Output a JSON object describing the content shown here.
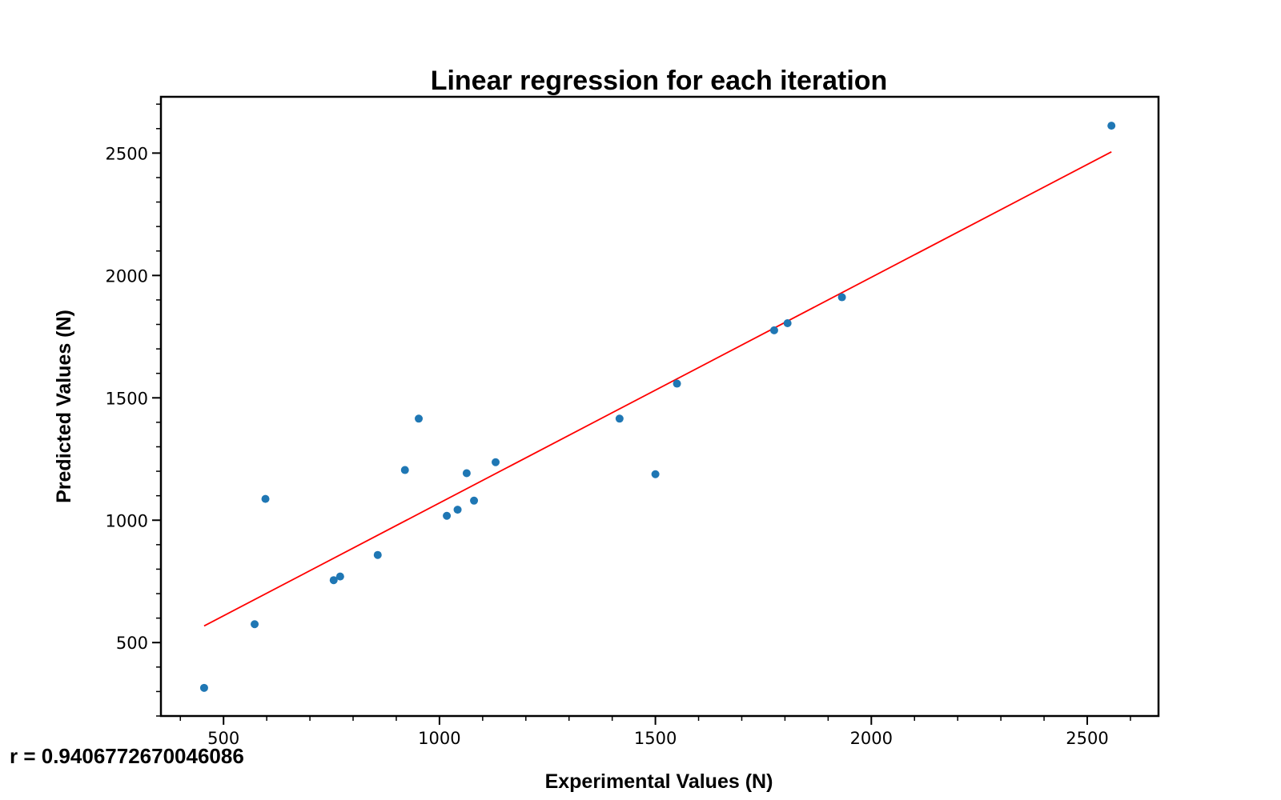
{
  "chart_data": {
    "type": "scatter",
    "title": "Linear regression for each iteration",
    "xlabel": "Experimental Values (N)",
    "ylabel": "Predicted Values (N)",
    "xlim": [
      355,
      2665
    ],
    "ylim": [
      200,
      2730
    ],
    "x_ticks": [
      500,
      1000,
      1500,
      2000,
      2500
    ],
    "y_ticks": [
      500,
      1000,
      1500,
      2000,
      2500
    ],
    "x_minor_step": 100,
    "y_minor_step": 100,
    "grid": false,
    "point_color": "#1f77b4",
    "line_color": "#ff0000",
    "points": [
      {
        "x": 455,
        "y": 315
      },
      {
        "x": 572,
        "y": 575
      },
      {
        "x": 597,
        "y": 1087
      },
      {
        "x": 755,
        "y": 755
      },
      {
        "x": 770,
        "y": 770
      },
      {
        "x": 857,
        "y": 858
      },
      {
        "x": 920,
        "y": 1205
      },
      {
        "x": 952,
        "y": 1415
      },
      {
        "x": 1017,
        "y": 1018
      },
      {
        "x": 1042,
        "y": 1043
      },
      {
        "x": 1063,
        "y": 1192
      },
      {
        "x": 1080,
        "y": 1080
      },
      {
        "x": 1130,
        "y": 1237
      },
      {
        "x": 1417,
        "y": 1415
      },
      {
        "x": 1500,
        "y": 1188
      },
      {
        "x": 1550,
        "y": 1558
      },
      {
        "x": 1775,
        "y": 1776
      },
      {
        "x": 1806,
        "y": 1805
      },
      {
        "x": 1932,
        "y": 1911
      },
      {
        "x": 2556,
        "y": 2612
      }
    ],
    "regression_line": {
      "x": [
        455,
        2556
      ],
      "y": [
        568,
        2505
      ]
    },
    "annotation": "r = 0.9406772670046086"
  }
}
